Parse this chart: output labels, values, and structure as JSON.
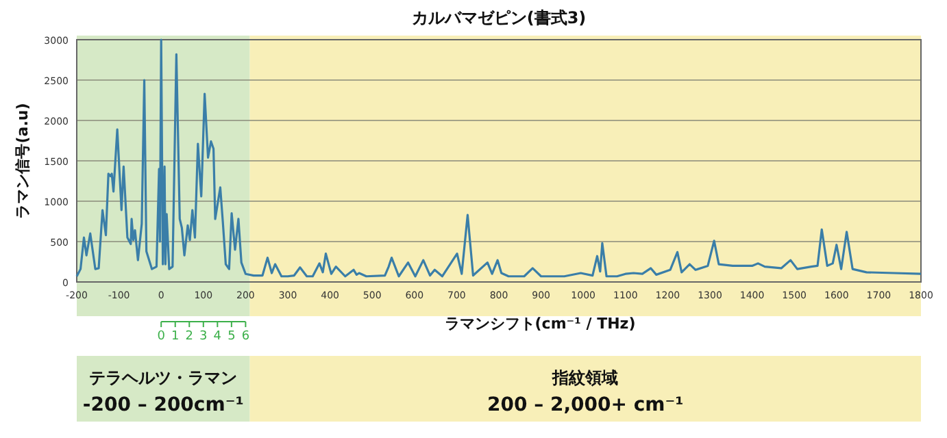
{
  "chart_data": {
    "type": "line",
    "title": "カルバマゼピン(書式3)",
    "xlabel": "ラマンシフト(cm⁻¹ / THz)",
    "ylabel": "ラマン信号(a.u)",
    "xlim": [
      -200,
      1800
    ],
    "xticks": [
      -200,
      -100,
      0,
      100,
      200,
      300,
      400,
      500,
      600,
      700,
      800,
      900,
      1000,
      1100,
      1200,
      1300,
      1400,
      1500,
      1600,
      1700,
      1800
    ],
    "ylim": [
      0,
      3000
    ],
    "yticks": [
      0,
      500,
      1000,
      1500,
      2000,
      2500,
      3000
    ],
    "x2lim": [
      -6,
      54
    ],
    "x2ticks": [
      0,
      1,
      2,
      3,
      4,
      5,
      6
    ],
    "grid": "y",
    "marker": "none",
    "line_style": "solid",
    "bands": [
      {
        "axis": "x",
        "from": -200,
        "to": 210,
        "label": "テラヘルツ・ラマン\n-200 – 200cm⁻¹",
        "color": "#d6e9c6"
      },
      {
        "axis": "x",
        "from": 210,
        "to": 1800,
        "label": "指紋領域\n200 – 2,000+ cm⁻¹",
        "color": "#f8efb8"
      }
    ],
    "series": [
      {
        "color": "#3a7ea8",
        "x": [
          -200,
          -191,
          -183,
          -177,
          -168,
          -156,
          -148,
          -139,
          -131,
          -125,
          -120,
          -117,
          -113,
          -104,
          -94,
          -89,
          -80,
          -72,
          -70,
          -66,
          -62,
          -55,
          -46,
          -40,
          -35,
          -22,
          -11,
          -5,
          -3,
          0,
          4,
          8,
          10,
          13,
          19,
          27,
          36,
          44,
          49,
          55,
          63,
          68,
          74,
          80,
          87,
          95,
          103,
          111,
          118,
          124,
          128,
          140,
          146,
          153,
          161,
          167,
          175,
          183,
          190,
          200,
          219,
          240,
          252,
          262,
          270,
          285,
          300,
          315,
          329,
          345,
          359,
          375,
          383,
          390,
          403,
          414,
          436,
          456,
          463,
          469,
          486,
          530,
          539,
          546,
          563,
          585,
          602,
          621,
          637,
          648,
          666,
          701,
          712,
          726,
          739,
          773,
          784,
          797,
          806,
          823,
          860,
          880,
          900,
          955,
          994,
          1022,
          1033,
          1040,
          1045,
          1055,
          1080,
          1100,
          1119,
          1140,
          1160,
          1173,
          1206,
          1223,
          1233,
          1252,
          1266,
          1295,
          1310,
          1321,
          1354,
          1400,
          1414,
          1430,
          1469,
          1491,
          1507,
          1540,
          1555,
          1565,
          1578,
          1591,
          1600,
          1611,
          1624,
          1638,
          1671,
          1737,
          1800
        ],
        "values": [
          70,
          160,
          550,
          330,
          600,
          160,
          170,
          890,
          580,
          1340,
          1310,
          1340,
          1120,
          1890,
          890,
          1430,
          550,
          470,
          780,
          520,
          640,
          270,
          720,
          2500,
          380,
          160,
          190,
          1400,
          500,
          3000,
          220,
          1430,
          220,
          840,
          160,
          190,
          2820,
          780,
          670,
          330,
          700,
          520,
          890,
          550,
          1710,
          1060,
          2330,
          1540,
          1740,
          1650,
          780,
          1170,
          750,
          220,
          160,
          850,
          400,
          780,
          240,
          100,
          80,
          80,
          300,
          110,
          220,
          70,
          70,
          80,
          180,
          70,
          70,
          230,
          120,
          350,
          100,
          190,
          70,
          150,
          90,
          110,
          70,
          80,
          190,
          300,
          70,
          240,
          70,
          270,
          80,
          150,
          70,
          350,
          100,
          830,
          80,
          240,
          100,
          270,
          110,
          70,
          70,
          170,
          70,
          70,
          110,
          80,
          320,
          130,
          480,
          70,
          70,
          100,
          110,
          100,
          170,
          90,
          150,
          370,
          120,
          220,
          150,
          200,
          510,
          220,
          200,
          200,
          230,
          190,
          170,
          270,
          160,
          190,
          200,
          650,
          200,
          230,
          460,
          160,
          620,
          160,
          120,
          110,
          100
        ]
      }
    ]
  }
}
